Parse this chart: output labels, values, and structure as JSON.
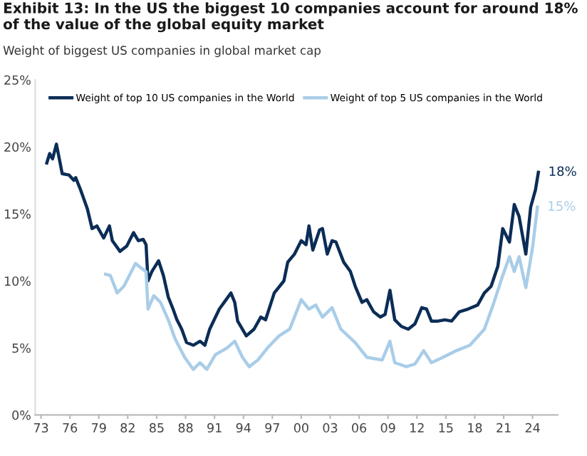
{
  "chart_data": {
    "type": "line",
    "title": "Exhibit 13: In the US the biggest 10 companies account for around 18% of the value of the global equity market",
    "subtitle": "Weight of biggest US companies in global market cap",
    "series": [
      {
        "name": "Weight of top 10 US companies in the World",
        "color": "#0b2d56",
        "x": [
          1973.6,
          1973.9,
          1974.2,
          1974.6,
          1974.9,
          1975.2,
          1975.9,
          1976.4,
          1976.6,
          1977.1,
          1977.8,
          1978.3,
          1978.8,
          1979.5,
          1980.1,
          1980.4,
          1981.2,
          1981.9,
          1982.6,
          1983.1,
          1983.6,
          1983.9,
          1984.1,
          1984.5,
          1985.2,
          1985.7,
          1986.2,
          1986.7,
          1987.1,
          1987.6,
          1988.1,
          1988.8,
          1989.5,
          1990.0,
          1990.5,
          1991.5,
          1992.2,
          1992.7,
          1993.1,
          1993.4,
          1994.3,
          1995.1,
          1995.8,
          1996.3,
          1997.2,
          1998.2,
          1998.6,
          1999.3,
          2000.0,
          2000.5,
          2000.8,
          2001.2,
          2001.9,
          2002.2,
          2002.7,
          2003.2,
          2003.6,
          2004.4,
          2005.1,
          2005.6,
          2006.3,
          2006.8,
          2007.5,
          2008.2,
          2008.7,
          2009.2,
          2009.7,
          2010.4,
          2011.1,
          2011.8,
          2012.5,
          2013.0,
          2013.5,
          2014.2,
          2014.9,
          2015.6,
          2016.4,
          2017.3,
          2018.3,
          2019.0,
          2019.7,
          2020.4,
          2020.9,
          2021.6,
          2022.1,
          2022.6,
          2023.3,
          2023.8,
          2024.3,
          2024.6
        ],
        "values": [
          18.8,
          19.5,
          19.1,
          20.2,
          19.1,
          18.0,
          17.9,
          17.5,
          17.7,
          16.8,
          15.4,
          13.9,
          14.1,
          13.2,
          14.1,
          13.0,
          12.2,
          12.6,
          13.6,
          13.0,
          13.1,
          12.7,
          10.0,
          10.7,
          11.5,
          10.4,
          8.8,
          7.9,
          7.1,
          6.4,
          5.4,
          5.2,
          5.5,
          5.2,
          6.4,
          7.9,
          8.6,
          9.1,
          8.4,
          7.0,
          5.9,
          6.4,
          7.3,
          7.1,
          9.1,
          10.0,
          11.4,
          12.0,
          13.0,
          12.7,
          14.1,
          12.3,
          13.8,
          13.9,
          12.0,
          13.0,
          12.9,
          11.4,
          10.7,
          9.6,
          8.4,
          8.6,
          7.7,
          7.3,
          7.5,
          9.3,
          7.1,
          6.6,
          6.4,
          6.8,
          8.0,
          7.9,
          7.0,
          7.0,
          7.1,
          7.0,
          7.7,
          7.9,
          8.2,
          9.1,
          9.6,
          11.1,
          13.9,
          12.9,
          15.7,
          14.8,
          12.0,
          15.5,
          16.8,
          18.1
        ]
      },
      {
        "name": "Weight of top 5 US companies in the World",
        "color": "#a9cde8",
        "x": [
          1979.7,
          1980.2,
          1980.9,
          1981.6,
          1982.8,
          1983.5,
          1983.9,
          1984.1,
          1984.7,
          1985.4,
          1986.2,
          1986.9,
          1987.9,
          1988.8,
          1989.5,
          1990.2,
          1991.1,
          1992.3,
          1993.1,
          1993.9,
          1994.6,
          1995.5,
          1996.5,
          1997.7,
          1998.8,
          2000.0,
          2000.8,
          2001.5,
          2002.2,
          2003.2,
          2004.1,
          2005.6,
          2006.8,
          2008.4,
          2009.2,
          2009.7,
          2010.9,
          2011.8,
          2012.7,
          2013.5,
          2014.7,
          2016.1,
          2017.5,
          2019.0,
          2019.9,
          2020.9,
          2021.6,
          2022.1,
          2022.6,
          2023.3,
          2024.0,
          2024.5
        ],
        "values": [
          10.5,
          10.4,
          9.1,
          9.6,
          11.3,
          10.9,
          10.7,
          7.9,
          8.9,
          8.4,
          7.1,
          5.7,
          4.3,
          3.4,
          3.9,
          3.4,
          4.5,
          5.0,
          5.5,
          4.3,
          3.6,
          4.1,
          5.0,
          5.9,
          6.4,
          8.6,
          7.9,
          8.2,
          7.3,
          8.0,
          6.4,
          5.4,
          4.3,
          4.1,
          5.5,
          3.9,
          3.6,
          3.8,
          4.8,
          3.9,
          4.3,
          4.8,
          5.2,
          6.4,
          8.2,
          10.4,
          11.8,
          10.7,
          11.8,
          9.5,
          12.5,
          15.5
        ]
      }
    ],
    "annotations": [
      {
        "text": "18%",
        "x": 2024.6,
        "y": 18.1
      },
      {
        "text": "15%",
        "x": 2024.5,
        "y": 15.5
      }
    ],
    "xlim": [
      1972.4,
      2026.6
    ],
    "xticks": [
      {
        "value": 1973,
        "label": "73"
      },
      {
        "value": 1976,
        "label": "76"
      },
      {
        "value": 1979,
        "label": "79"
      },
      {
        "value": 1982,
        "label": "82"
      },
      {
        "value": 1985,
        "label": "85"
      },
      {
        "value": 1988,
        "label": "88"
      },
      {
        "value": 1991,
        "label": "91"
      },
      {
        "value": 1994,
        "label": "94"
      },
      {
        "value": 1997,
        "label": "97"
      },
      {
        "value": 2000,
        "label": "00"
      },
      {
        "value": 2003,
        "label": "03"
      },
      {
        "value": 2006,
        "label": "06"
      },
      {
        "value": 2009,
        "label": "09"
      },
      {
        "value": 2012,
        "label": "12"
      },
      {
        "value": 2015,
        "label": "15"
      },
      {
        "value": 2018,
        "label": "18"
      },
      {
        "value": 2021,
        "label": "21"
      },
      {
        "value": 2024,
        "label": "24"
      }
    ],
    "ylim": [
      0,
      25
    ],
    "yticks": [
      {
        "value": 0,
        "label": "0%"
      },
      {
        "value": 5,
        "label": "5%"
      },
      {
        "value": 10,
        "label": "10%"
      },
      {
        "value": 15,
        "label": "15%"
      },
      {
        "value": 20,
        "label": "20%"
      },
      {
        "value": 25,
        "label": "25%"
      }
    ],
    "grid": false,
    "legend": "top",
    "line_style": "solid",
    "marker": "none"
  }
}
